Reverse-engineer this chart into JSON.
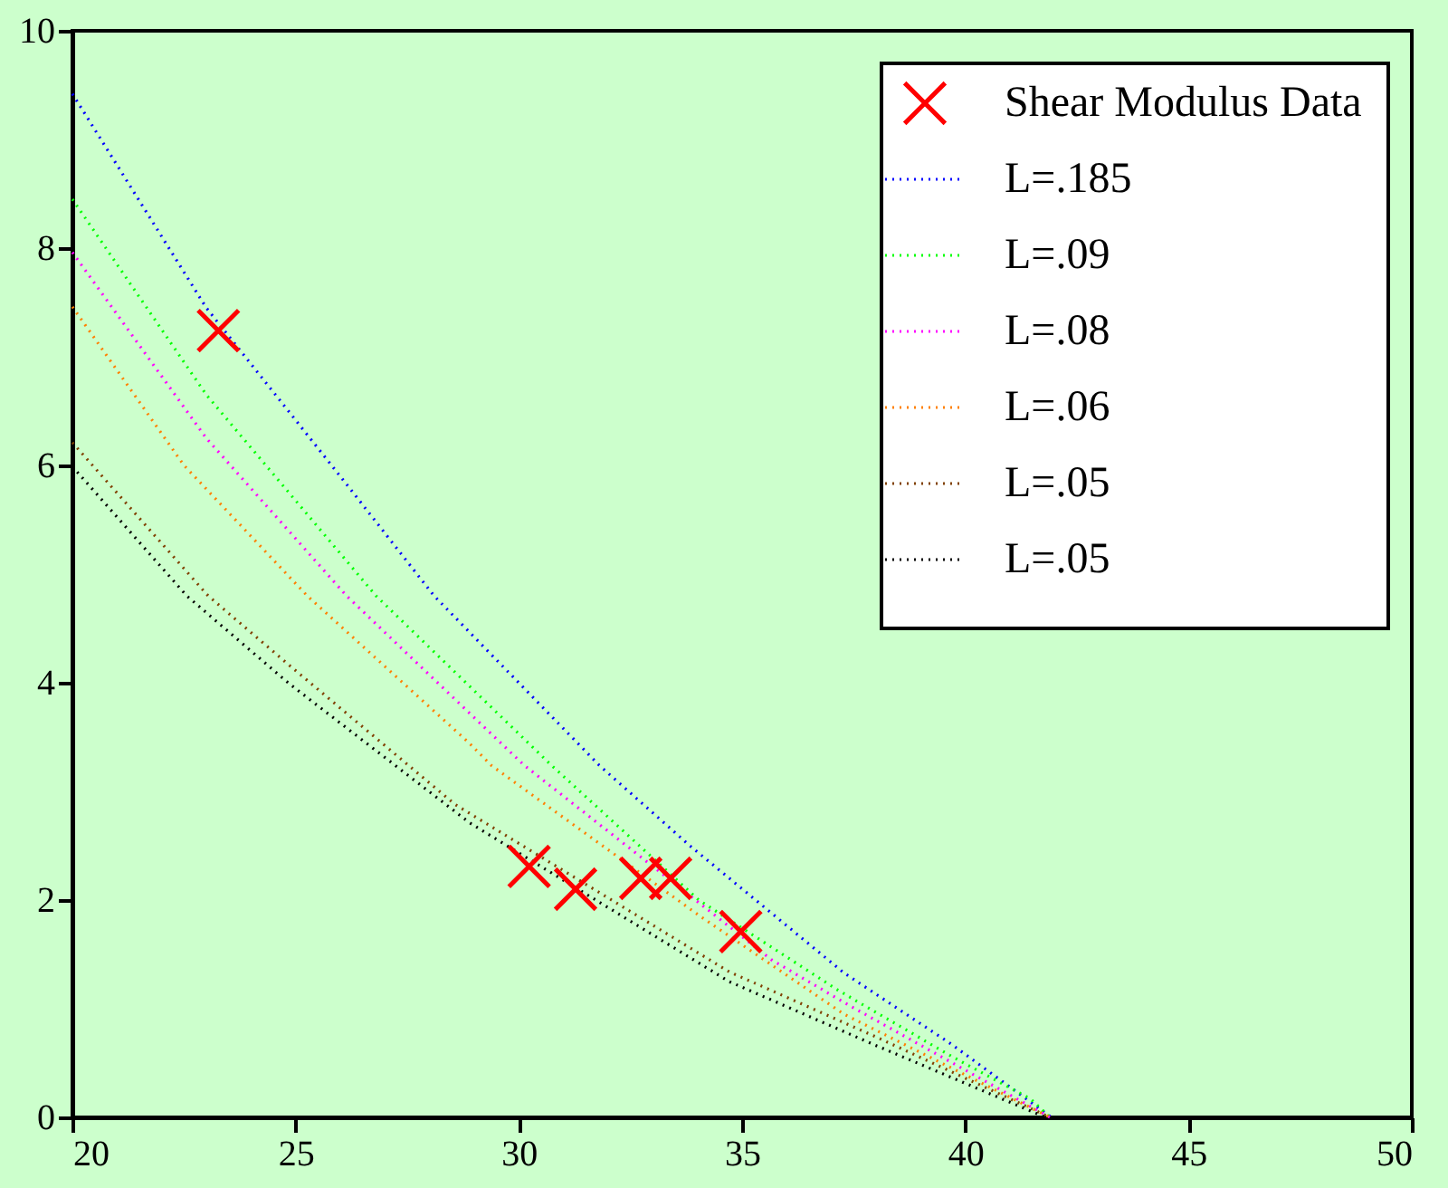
{
  "chart_data": {
    "type": "line",
    "line_style": "dotted",
    "legend": "top right",
    "grid": false,
    "xlim": [
      20,
      50
    ],
    "ylim": [
      0,
      10
    ],
    "xticks": [
      20,
      25,
      30,
      35,
      40,
      45,
      50
    ],
    "yticks": [
      0,
      2,
      4,
      6,
      8,
      10
    ],
    "series": [
      {
        "name": "Shear Modulus Data",
        "type": "scatter",
        "marker": "cross",
        "color": "#ff0000",
        "x": [
          23.27,
          30.23,
          31.27,
          32.73,
          33.4,
          34.97
        ],
        "values": [
          7.24,
          2.31,
          2.1,
          2.2,
          2.2,
          1.71
        ]
      },
      {
        "name": "L=.185",
        "color": "#0000ff",
        "x": [
          20,
          23,
          26,
          28.1,
          31.8,
          33.83,
          37.28,
          39.7,
          41.93
        ],
        "values": [
          9.42,
          7.45,
          5.9,
          4.8,
          3.24,
          2.5,
          1.33,
          0.67,
          0
        ]
      },
      {
        "name": "L=.09",
        "color": "#00ff00",
        "x": [
          20,
          23,
          26.8,
          30.73,
          34.03,
          37.15,
          39.7,
          41.46,
          41.9
        ],
        "values": [
          8.45,
          6.65,
          4.8,
          3.24,
          2.0,
          1.17,
          0.56,
          0.17,
          0
        ]
      },
      {
        "name": "L=.08",
        "color": "#ff00ff",
        "x": [
          20,
          23,
          26.14,
          30.12,
          35.66,
          37.4,
          41.9
        ],
        "values": [
          7.96,
          6.25,
          4.8,
          3.24,
          1.45,
          1.03,
          0
        ]
      },
      {
        "name": "L=.06",
        "color": "#ff8000",
        "x": [
          20,
          22.5,
          25.26,
          28.9,
          29.38,
          34.03,
          37.28,
          41.9
        ],
        "values": [
          7.46,
          6.0,
          4.8,
          3.44,
          3.24,
          1.86,
          0.95,
          0
        ]
      },
      {
        "name": "L=.05",
        "color": "#804000",
        "x": [
          20,
          23.04,
          24.86,
          28.57,
          34.71,
          37.95,
          41.9
        ],
        "values": [
          6.21,
          4.8,
          4.16,
          2.88,
          1.34,
          0.75,
          0
        ]
      },
      {
        "name": "L=.05",
        "color": "#000000",
        "x": [
          20,
          22.56,
          24.86,
          28.9,
          34.71,
          37.95,
          41.8
        ],
        "values": [
          5.99,
          4.8,
          3.99,
          2.71,
          1.25,
          0.67,
          0
        ]
      }
    ]
  }
}
